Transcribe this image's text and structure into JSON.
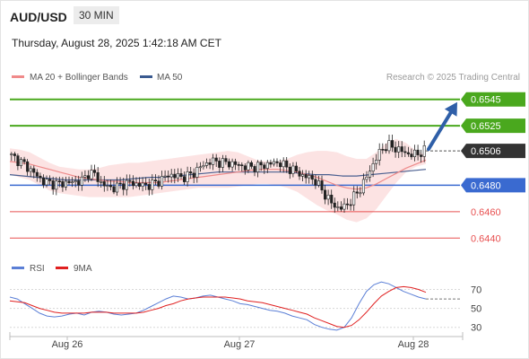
{
  "header": {
    "symbol": "AUD/USD",
    "timeframe": "30 MIN",
    "datetime": "Thursday, August 28, 2025 1:42:18 AM CET"
  },
  "legend": {
    "items": [
      {
        "label": "MA 20 + Bollinger Bands",
        "color": "#f08a8a"
      },
      {
        "label": "MA 50",
        "color": "#3a5a90"
      }
    ],
    "source": "Research © 2025 Trading Central"
  },
  "chart_data": [
    {
      "type": "candlestick",
      "x_tick_labels": [
        "Aug 26",
        "Aug 27",
        "Aug 28"
      ],
      "ylim": [
        0.643,
        0.6555
      ],
      "price_levels": [
        {
          "value": 0.6545,
          "label": "0.6545",
          "kind": "resistance",
          "color": "#4aa81e"
        },
        {
          "value": 0.6525,
          "label": "0.6525",
          "kind": "resistance",
          "color": "#4aa81e"
        },
        {
          "value": 0.6506,
          "label": "0.6506",
          "kind": "last",
          "color": "#333333"
        },
        {
          "value": 0.648,
          "label": "0.6480",
          "kind": "pivot",
          "color": "#3a6ad0"
        },
        {
          "value": 0.646,
          "label": "0.6460",
          "kind": "support",
          "color": "#e85050"
        },
        {
          "value": 0.644,
          "label": "0.6440",
          "kind": "support",
          "color": "#e85050"
        }
      ],
      "close_path": [
        0.6503,
        0.6501,
        0.6498,
        0.6495,
        0.6491,
        0.6487,
        0.6483,
        0.6482,
        0.6481,
        0.6481,
        0.6482,
        0.6482,
        0.6483,
        0.6484,
        0.649,
        0.6488,
        0.6482,
        0.6479,
        0.6478,
        0.6479,
        0.6481,
        0.6482,
        0.6481,
        0.648,
        0.648,
        0.6481,
        0.6483,
        0.6486,
        0.6488,
        0.6487,
        0.6486,
        0.6487,
        0.6489,
        0.6493,
        0.6496,
        0.6498,
        0.6498,
        0.6497,
        0.6497,
        0.6496,
        0.6495,
        0.6494,
        0.6494,
        0.6494,
        0.6495,
        0.6496,
        0.6497,
        0.6497,
        0.6494,
        0.6492,
        0.649,
        0.6487,
        0.6486,
        0.6484,
        0.6478,
        0.6472,
        0.6466,
        0.6463,
        0.6463,
        0.6467,
        0.6472,
        0.6478,
        0.6486,
        0.6495,
        0.6503,
        0.6509,
        0.651,
        0.6508,
        0.6506,
        0.6504,
        0.6503,
        0.6504,
        0.6506
      ],
      "ma20": [
        0.6498,
        0.6497,
        0.6496,
        0.6494,
        0.6492,
        0.649,
        0.6488,
        0.6486,
        0.6485,
        0.6484,
        0.6483,
        0.6483,
        0.6482,
        0.6482,
        0.6482,
        0.6482,
        0.6483,
        0.6484,
        0.6485,
        0.6486,
        0.6487,
        0.6488,
        0.6489,
        0.649,
        0.6491,
        0.6492,
        0.6492,
        0.6492,
        0.6491,
        0.649,
        0.6488,
        0.6486,
        0.6483,
        0.648,
        0.6478,
        0.6477,
        0.6478,
        0.6481,
        0.6485,
        0.6489,
        0.6493,
        0.6496,
        0.6499
      ],
      "bb_upper": [
        0.6508,
        0.6507,
        0.6505,
        0.6501,
        0.6497,
        0.6494,
        0.6493,
        0.6492,
        0.6492,
        0.6493,
        0.6495,
        0.6496,
        0.6497,
        0.6497,
        0.6498,
        0.6499,
        0.65,
        0.6501,
        0.6502,
        0.6503,
        0.6504,
        0.6505,
        0.6506,
        0.6505,
        0.6502,
        0.6499,
        0.6498,
        0.6498,
        0.65,
        0.6503,
        0.6505,
        0.6506,
        0.6506,
        0.6505,
        0.6502,
        0.65,
        0.65,
        0.6505,
        0.6512,
        0.6515,
        0.6512,
        0.6506,
        0.6503
      ],
      "bb_lower": [
        0.6488,
        0.6486,
        0.6484,
        0.648,
        0.6476,
        0.6474,
        0.6473,
        0.6472,
        0.6471,
        0.6471,
        0.6471,
        0.6471,
        0.6471,
        0.6472,
        0.6473,
        0.6474,
        0.6475,
        0.6476,
        0.6477,
        0.6478,
        0.6478,
        0.6478,
        0.6478,
        0.6479,
        0.648,
        0.6481,
        0.6481,
        0.648,
        0.6478,
        0.6475,
        0.647,
        0.6465,
        0.6461,
        0.6458,
        0.6454,
        0.6452,
        0.6455,
        0.6462,
        0.6472,
        0.6482,
        0.649,
        0.6494,
        0.6496
      ],
      "ma50": [
        0.6488,
        0.6487,
        0.6486,
        0.6485,
        0.6484,
        0.6484,
        0.6484,
        0.6484,
        0.6484,
        0.6485,
        0.6486,
        0.6486,
        0.6487,
        0.6488,
        0.6489,
        0.649,
        0.649,
        0.649,
        0.649,
        0.649,
        0.649,
        0.6489,
        0.6488,
        0.6488,
        0.6487,
        0.6487,
        0.6488,
        0.6489,
        0.649,
        0.6491,
        0.6492
      ]
    },
    {
      "type": "line",
      "panel": "oscillator",
      "legend": [
        {
          "name": "RSI",
          "color": "#5b7fd6"
        },
        {
          "name": "9MA",
          "color": "#e02020"
        }
      ],
      "ylim": [
        25,
        80
      ],
      "y_ticks": [
        70,
        50,
        30
      ],
      "series": [
        {
          "name": "RSI",
          "values": [
            62,
            60,
            55,
            50,
            45,
            42,
            41,
            42,
            44,
            45,
            43,
            46,
            47,
            46,
            44,
            43,
            44,
            45,
            48,
            52,
            56,
            60,
            63,
            62,
            60,
            61,
            63,
            64,
            62,
            60,
            58,
            55,
            54,
            52,
            50,
            48,
            47,
            45,
            42,
            40,
            38,
            33,
            30,
            28,
            27,
            30,
            40,
            55,
            68,
            75,
            78,
            76,
            72,
            68,
            65,
            62,
            60
          ]
        },
        {
          "name": "9MA",
          "values": [
            58,
            57,
            56,
            53,
            50,
            48,
            46,
            45,
            45,
            45,
            45,
            46,
            46,
            46,
            45,
            45,
            45,
            45,
            46,
            48,
            50,
            53,
            55,
            58,
            60,
            61,
            62,
            62,
            62,
            62,
            61,
            60,
            58,
            57,
            56,
            54,
            52,
            50,
            48,
            46,
            44,
            40,
            37,
            34,
            31,
            30,
            32,
            38,
            46,
            55,
            63,
            68,
            72,
            73,
            72,
            70,
            67
          ]
        }
      ]
    }
  ]
}
